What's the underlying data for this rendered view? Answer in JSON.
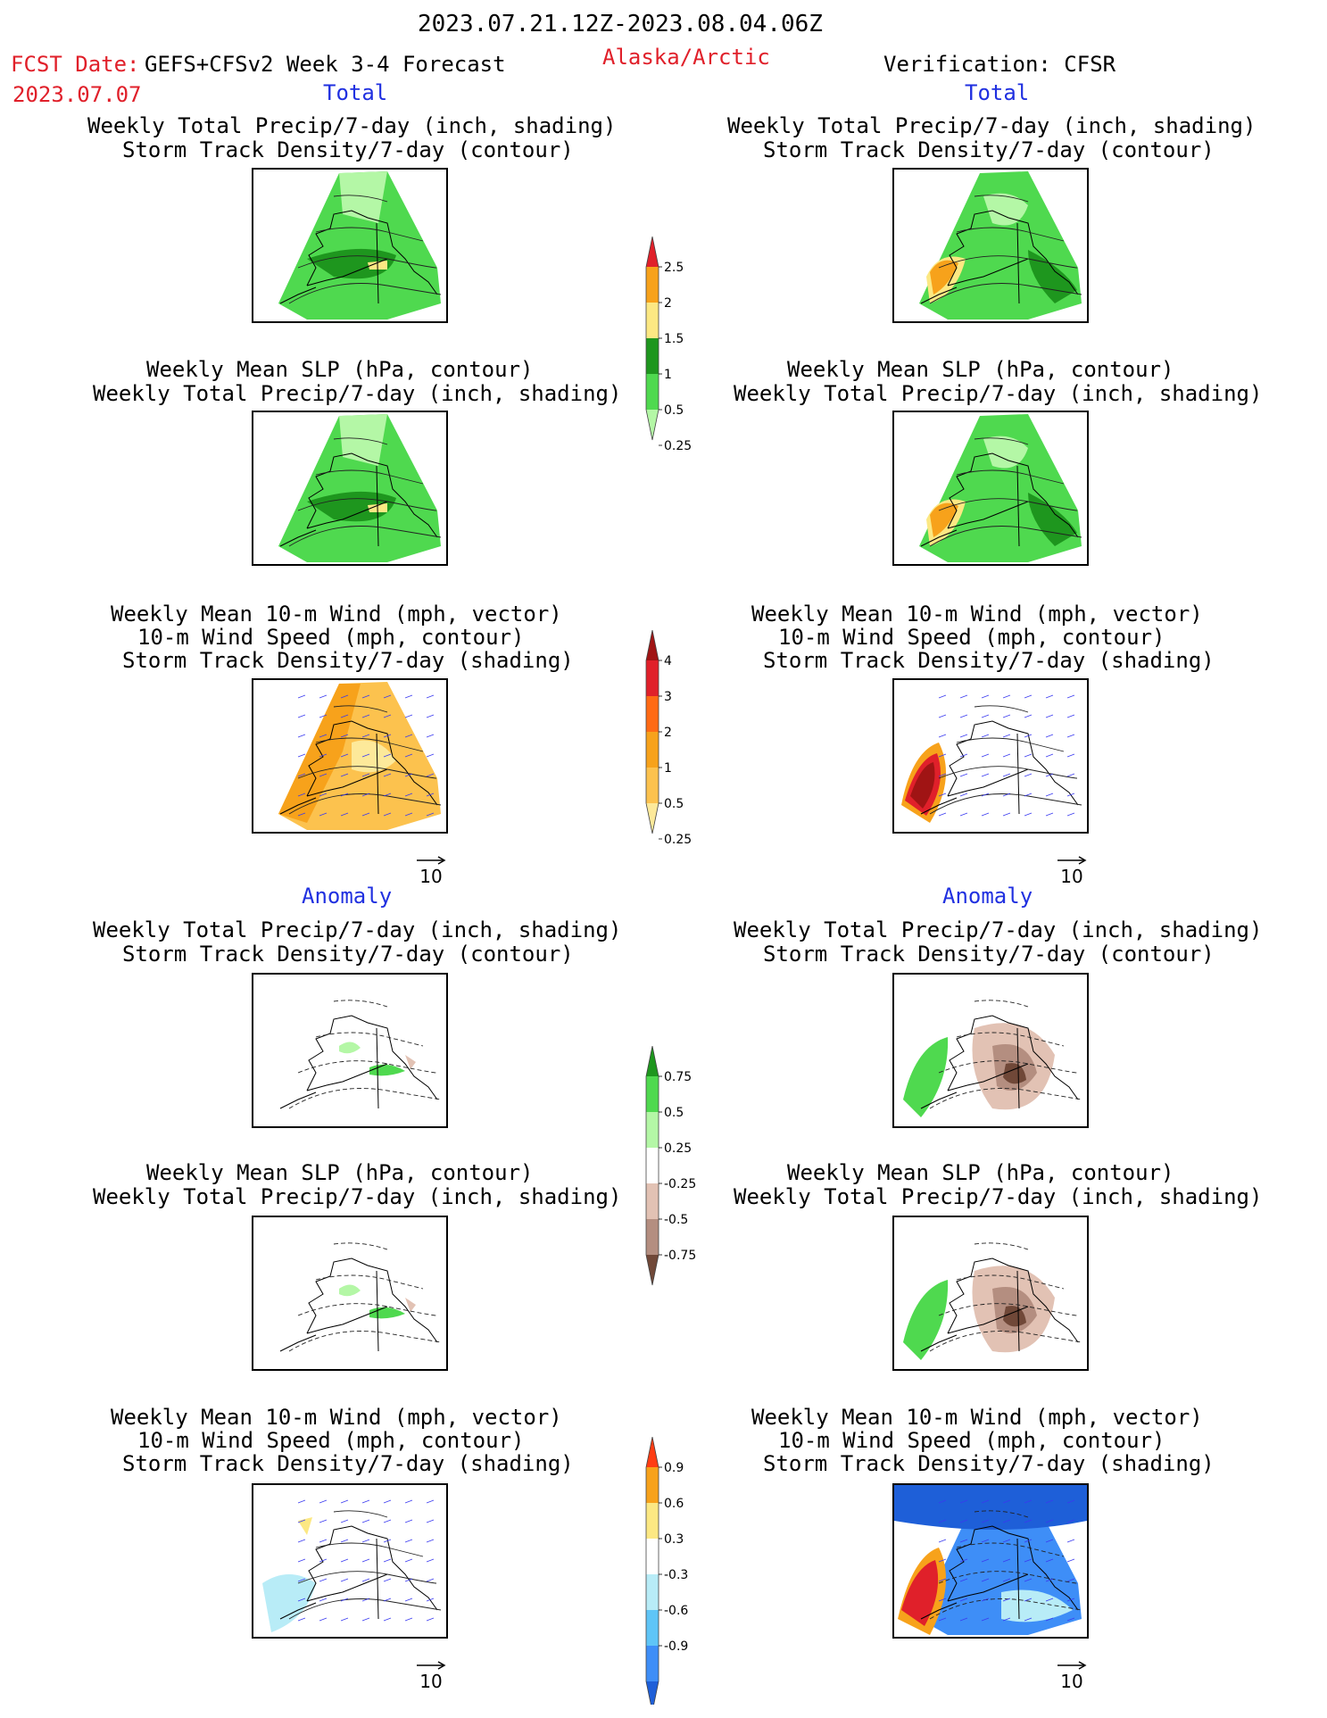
{
  "header": {
    "date_range": "2023.07.21.12Z-2023.08.04.06Z",
    "fcst_label": "FCST Date:",
    "model": "GEFS+CFSv2 Week 3-4 Forecast",
    "region": "Alaska/Arctic",
    "verification": "Verification: CFSR",
    "fcst_date": "2023.07.07"
  },
  "sections": {
    "total": "Total",
    "anomaly": "Anomaly"
  },
  "panel_titles": {
    "precip_storm": [
      "Weekly Total Precip/7-day (inch, shading)",
      "Storm Track Density/7-day (contour)"
    ],
    "slp_precip": [
      "Weekly Mean SLP (hPa, contour)",
      "Weekly Total Precip/7-day (inch, shading)"
    ],
    "wind_storm": [
      "Weekly Mean 10-m Wind (mph, vector)",
      "10-m Wind Speed (mph, contour)",
      "Storm Track Density/7-day (shading)"
    ]
  },
  "vector_reference": "10",
  "colorbars": {
    "precip_total": {
      "labels": [
        "2.5",
        "2",
        "1.5",
        "1",
        "0.5",
        "0.25"
      ],
      "colors": [
        "#e0202a",
        "#f7a21b",
        "#fce883",
        "#1e961e",
        "#4fd94f",
        "#b4f7a6"
      ]
    },
    "storm_total": {
      "labels": [
        "4",
        "3",
        "2",
        "1",
        "0.5",
        "0.25"
      ],
      "colors": [
        "#a01414",
        "#e0202a",
        "#ff6a14",
        "#f7a21b",
        "#fcc24e",
        "#fde99a"
      ]
    },
    "precip_anom": {
      "labels": [
        "0.75",
        "0.5",
        "0.25",
        "-0.25",
        "-0.5",
        "-0.75"
      ],
      "colors": [
        "#1e961e",
        "#4fd94f",
        "#b4f7a6",
        "#ffffff",
        "#e2c2b4",
        "#b48e80",
        "#704838"
      ]
    },
    "storm_anom": {
      "labels": [
        "0.9",
        "0.6",
        "0.3",
        "-0.3",
        "-0.6",
        "-0.9"
      ],
      "colors": [
        "#ff3d14",
        "#f7a21b",
        "#fce883",
        "#ffffff",
        "#b8ecf7",
        "#5fc5f7",
        "#3e8ef7",
        "#1e5fd8"
      ]
    }
  },
  "map_colors": {
    "light_green": "#b4f7a6",
    "mid_green": "#4fd94f",
    "dark_green": "#1e961e",
    "yellow": "#fce883",
    "orange": "#f7a21b",
    "red": "#e0202a",
    "dark_red": "#a01414",
    "light_orange": "#fcc24e",
    "pale_yellow": "#fde99a",
    "light_brown": "#e2c2b4",
    "mid_brown": "#b48e80",
    "dark_brown": "#704838",
    "light_blue": "#b8ecf7",
    "blue": "#3e8ef7",
    "dark_blue": "#1e5fd8",
    "vector_color": "#3a3af0"
  }
}
